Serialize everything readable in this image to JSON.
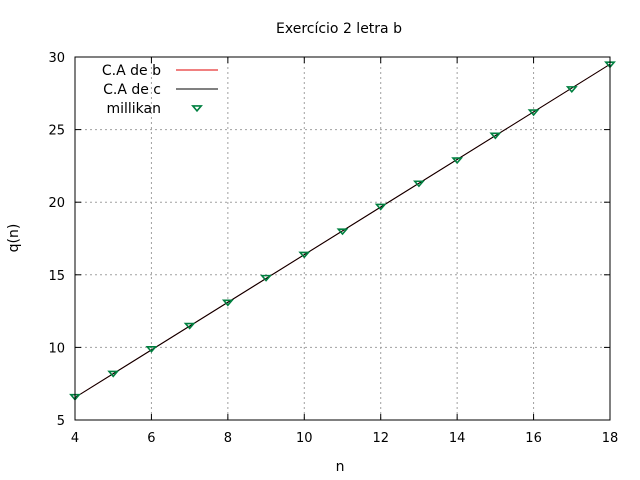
{
  "chart_data": {
    "type": "line",
    "title": "Exercício 2 letra b",
    "xlabel": "n",
    "ylabel": "q(n)",
    "xlim": [
      4,
      18
    ],
    "ylim": [
      5,
      30
    ],
    "xticks": [
      4,
      6,
      8,
      10,
      12,
      14,
      16,
      18
    ],
    "yticks": [
      5,
      10,
      15,
      20,
      25,
      30
    ],
    "grid": true,
    "legend_position": "top-left",
    "series": [
      {
        "name": "C.A de b",
        "style": "line",
        "color": "#e00000",
        "x": [
          4,
          18
        ],
        "y": [
          6.55,
          29.5
        ]
      },
      {
        "name": "C.A de c",
        "style": "line",
        "color": "#000000",
        "x": [
          4,
          18
        ],
        "y": [
          6.55,
          29.5
        ]
      },
      {
        "name": "millikan",
        "style": "marker",
        "marker": "down-triangle",
        "color": "#008040",
        "x": [
          4,
          5,
          6,
          7,
          8,
          9,
          10,
          11,
          12,
          13,
          14,
          15,
          16,
          17,
          18
        ],
        "y": [
          6.6,
          8.2,
          9.9,
          11.5,
          13.1,
          14.8,
          16.4,
          18.0,
          19.7,
          21.3,
          22.9,
          24.6,
          26.2,
          27.8,
          29.5
        ]
      }
    ]
  }
}
